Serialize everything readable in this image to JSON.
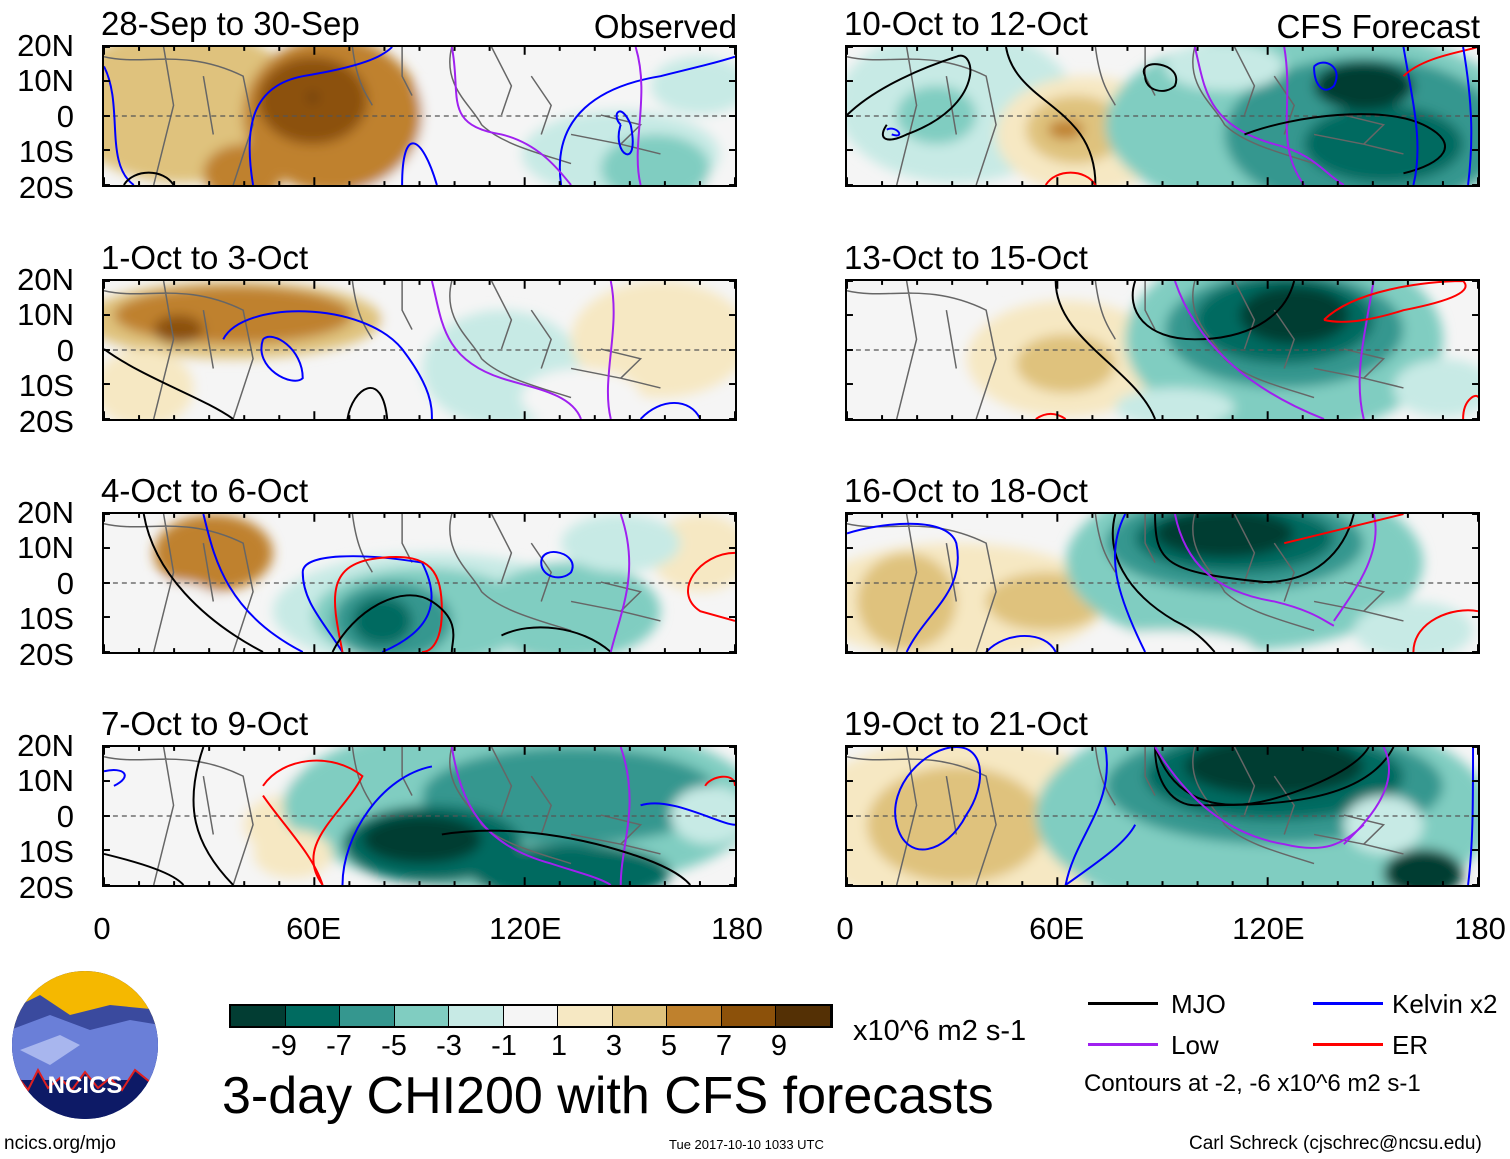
{
  "panels": [
    {
      "id": "p1",
      "title": "28-Sep to 30-Sep",
      "label": "Observed"
    },
    {
      "id": "p2",
      "title": "1-Oct to 3-Oct"
    },
    {
      "id": "p3",
      "title": "4-Oct to 6-Oct"
    },
    {
      "id": "p4",
      "title": "7-Oct to 9-Oct"
    },
    {
      "id": "p5",
      "title": "10-Oct to 12-Oct",
      "label": "CFS Forecast"
    },
    {
      "id": "p6",
      "title": "13-Oct to 15-Oct"
    },
    {
      "id": "p7",
      "title": "16-Oct to 18-Oct"
    },
    {
      "id": "p8",
      "title": "19-Oct to 21-Oct"
    }
  ],
  "lat_labels": [
    "20N",
    "10N",
    "0",
    "10S",
    "20S"
  ],
  "lon_labels": [
    "0",
    "60E",
    "120E",
    "180"
  ],
  "colorbar": {
    "colors": [
      "#023d33",
      "#006b60",
      "#35978f",
      "#80cdc1",
      "#c7eae5",
      "#f5f5f5",
      "#f6e8c3",
      "#dfc27d",
      "#bf812d",
      "#8c510a",
      "#543005"
    ],
    "labels": [
      "-9",
      "-7",
      "-5",
      "-3",
      "-1",
      "1",
      "3",
      "5",
      "7",
      "9"
    ],
    "units": "x10^6 m2 s-1"
  },
  "title": "3-day CHI200 with CFS forecasts",
  "legend": {
    "items": [
      {
        "label": "MJO",
        "color": "#000000"
      },
      {
        "label": "Kelvin x2",
        "color": "#0000ff"
      },
      {
        "label": "Low",
        "color": "#a020f0"
      },
      {
        "label": "ER",
        "color": "#ff0000"
      }
    ],
    "note": "Contours at -2, -6 x10^6 m2 s-1"
  },
  "logo_text": "NCICS",
  "footer": {
    "url": "ncics.org/mjo",
    "timestamp": "Tue 2017-10-10 1033 UTC",
    "author": "Carl Schreck (cjschrec@ncsu.edu)"
  }
}
